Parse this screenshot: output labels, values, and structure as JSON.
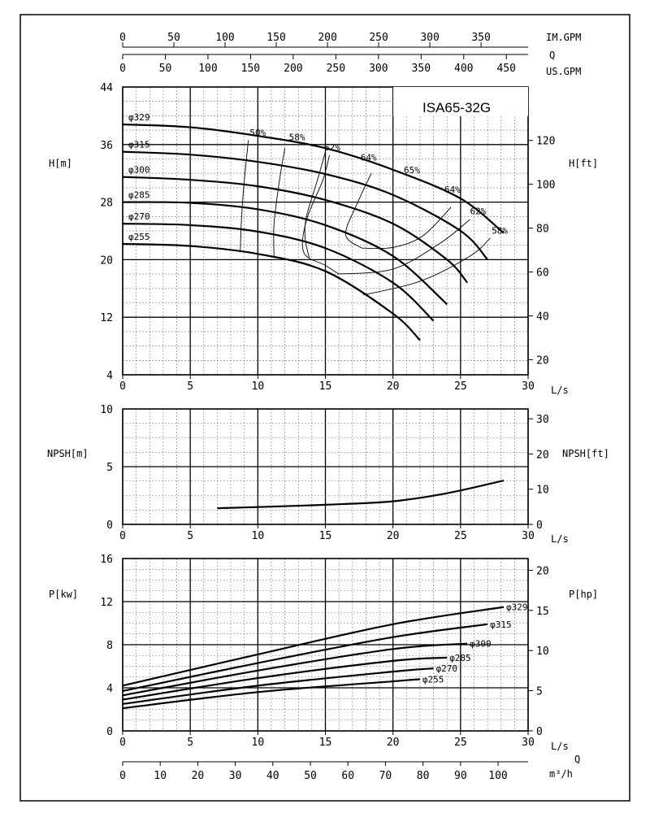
{
  "chart_data": [
    {
      "type": "line",
      "title": "ISA65-32G",
      "x_axes": [
        {
          "label": "IM.GPM",
          "ticks": [
            "0",
            "50",
            "100",
            "150",
            "200",
            "250",
            "300",
            "350"
          ],
          "per_ls": 13.198
        },
        {
          "label": "US.GPM",
          "ticks": [
            "0",
            "50",
            "100",
            "150",
            "200",
            "250",
            "300",
            "350",
            "400",
            "450"
          ],
          "per_ls": 15.85
        },
        {
          "label": "L/s",
          "ticks": [
            "0",
            "5",
            "10",
            "15",
            "20",
            "25",
            "30"
          ],
          "xlim": [
            0,
            30
          ]
        }
      ],
      "q_label": "Q",
      "ylabel": "H[m]",
      "ylim": [
        4,
        44
      ],
      "yticks": [
        "4",
        "12",
        "20",
        "28",
        "36",
        "44"
      ],
      "ylabel_right": "H[ft]",
      "yticks_right": [
        "20",
        "40",
        "60",
        "80",
        "100",
        "120"
      ],
      "series": [
        {
          "name": "φ329",
          "x": [
            0,
            5,
            10,
            15,
            20,
            25,
            28.2
          ],
          "y": [
            38.8,
            38.4,
            37.2,
            35.5,
            32.5,
            28.5,
            23.7
          ]
        },
        {
          "name": "φ315",
          "x": [
            0,
            5,
            10,
            15,
            20,
            25,
            27
          ],
          "y": [
            35.0,
            34.6,
            33.6,
            31.9,
            29.0,
            24.0,
            20.0
          ]
        },
        {
          "name": "φ300",
          "x": [
            0,
            5,
            10,
            15,
            20,
            24,
            25.5
          ],
          "y": [
            31.5,
            31.1,
            30.2,
            28.3,
            25.0,
            20.0,
            16.8
          ]
        },
        {
          "name": "φ285",
          "x": [
            0,
            5,
            10,
            15,
            20,
            24
          ],
          "y": [
            28.0,
            27.9,
            27.0,
            24.8,
            20.5,
            13.8
          ]
        },
        {
          "name": "φ270",
          "x": [
            0,
            5,
            10,
            15,
            20,
            23
          ],
          "y": [
            25.0,
            24.8,
            23.9,
            21.6,
            16.8,
            11.5
          ]
        },
        {
          "name": "φ255",
          "x": [
            0,
            5,
            10,
            15,
            20,
            22
          ],
          "y": [
            22.2,
            21.9,
            20.8,
            18.4,
            12.5,
            8.8
          ]
        }
      ],
      "efficiency_labels": [
        "50%",
        "58%",
        "62%",
        "64%",
        "65%",
        "64%",
        "62%",
        "58%"
      ]
    },
    {
      "type": "line",
      "ylabel": "NPSH[m]",
      "ylim": [
        0,
        10
      ],
      "yticks": [
        "0",
        "5",
        "10"
      ],
      "ylabel_right": "NPSH[ft]",
      "yticks_right": [
        "0",
        "10",
        "20",
        "30"
      ],
      "xlabel": "L/s",
      "xticks": [
        "0",
        "5",
        "10",
        "15",
        "20",
        "25",
        "30"
      ],
      "series": [
        {
          "x": [
            7,
            10,
            15,
            20,
            24,
            28.2
          ],
          "y": [
            1.4,
            1.5,
            1.7,
            2.0,
            2.7,
            3.8
          ]
        }
      ]
    },
    {
      "type": "line",
      "ylabel": "P[kw]",
      "ylim": [
        0,
        16
      ],
      "yticks": [
        "0",
        "4",
        "8",
        "12",
        "16"
      ],
      "ylabel_right": "P[hp]",
      "yticks_right": [
        "0",
        "5",
        "10",
        "15",
        "20"
      ],
      "xlabel": "L/s",
      "xticks": [
        "0",
        "5",
        "10",
        "15",
        "20",
        "25",
        "30"
      ],
      "q_label": "Q",
      "x2label": "m³/h",
      "x2ticks": [
        "0",
        "10",
        "20",
        "30",
        "40",
        "50",
        "60",
        "70",
        "80",
        "90",
        "100"
      ],
      "series": [
        {
          "name": "φ329",
          "x": [
            0,
            10,
            20,
            28.2
          ],
          "y": [
            4.2,
            7.1,
            9.9,
            11.5
          ]
        },
        {
          "name": "φ315",
          "x": [
            0,
            10,
            20,
            27
          ],
          "y": [
            3.7,
            6.3,
            8.7,
            9.9
          ]
        },
        {
          "name": "φ300",
          "x": [
            0,
            10,
            20,
            25.5
          ],
          "y": [
            3.3,
            5.6,
            7.6,
            8.1
          ]
        },
        {
          "name": "φ285",
          "x": [
            0,
            10,
            20,
            24
          ],
          "y": [
            2.9,
            4.9,
            6.5,
            6.8
          ]
        },
        {
          "name": "φ270",
          "x": [
            0,
            10,
            20,
            23
          ],
          "y": [
            2.5,
            4.2,
            5.5,
            5.8
          ]
        },
        {
          "name": "φ255",
          "x": [
            0,
            10,
            20,
            22
          ],
          "y": [
            2.1,
            3.6,
            4.6,
            4.8
          ]
        }
      ]
    }
  ]
}
